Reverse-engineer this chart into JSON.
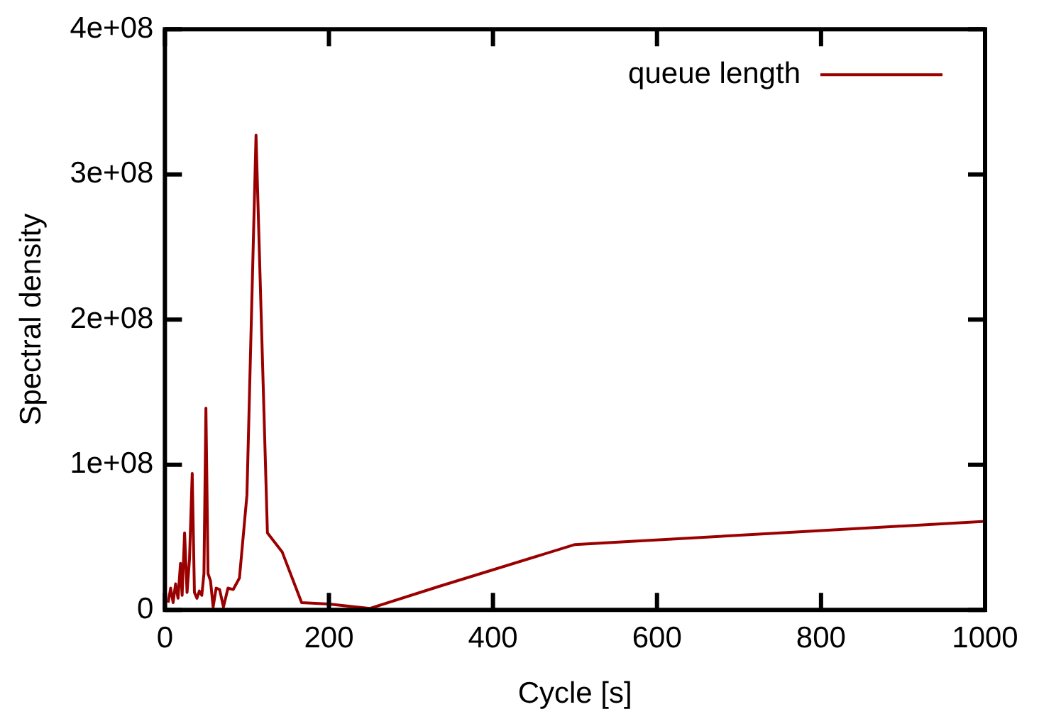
{
  "chart_data": {
    "type": "line",
    "xlabel": "Cycle [s]",
    "ylabel": "Spectral density",
    "xlim": [
      0,
      1000
    ],
    "xticks": [
      0,
      200,
      400,
      600,
      800,
      1000
    ],
    "ylim": [
      0,
      400000000.0
    ],
    "yticks": [
      0,
      {
        "value": 100000000.0,
        "label": "1e+08"
      },
      {
        "value": 200000000.0,
        "label": "2e+08"
      },
      {
        "value": 300000000.0,
        "label": "3e+08"
      },
      {
        "value": 400000000.0,
        "label": "4e+08"
      }
    ],
    "grid": false,
    "legend": "top right",
    "marker": "none",
    "line_style": "solid",
    "series": [
      {
        "name": "queue length",
        "color": "#9b0000",
        "x": [
          4,
          7,
          10,
          13,
          16,
          19,
          21,
          24,
          27,
          30,
          33.3,
          36,
          39,
          42,
          45,
          47.6,
          50.0,
          52.6,
          55.6,
          58.8,
          62.5,
          66.7,
          71.4,
          76.9,
          83.3,
          90.9,
          100.0,
          111.1,
          125.0,
          142.9,
          166.7,
          200.0,
          250.0,
          333.3,
          500.0,
          1000.0
        ],
        "values": [
          5000000.0,
          15000000.0,
          5000000.0,
          18000000.0,
          8000000.0,
          32000000.0,
          10000000.0,
          53000000.0,
          12000000.0,
          35000000.0,
          94000000.0,
          12000000.0,
          8000000.0,
          13000000.0,
          10000000.0,
          25000000.0,
          139000000.0,
          25000000.0,
          20000000.0,
          2000000.0,
          15000000.0,
          14000000.0,
          2000000.0,
          15000000.0,
          14000000.0,
          22000000.0,
          79000000.0,
          327000000.0,
          53000000.0,
          40000000.0,
          5000000.0,
          4000000.0,
          1000000.0,
          16000000.0,
          45000000.0,
          61000000.0
        ]
      }
    ]
  }
}
